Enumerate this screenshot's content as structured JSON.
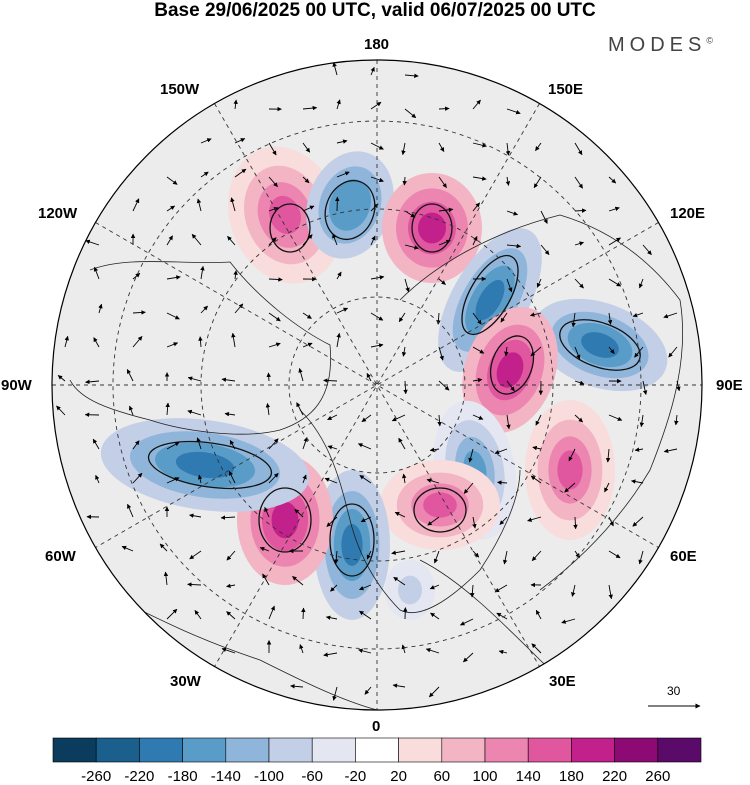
{
  "title": "Base 29/06/2025 00 UTC, valid 06/07/2025 00 UTC",
  "brand": "MODES",
  "brand_mark": "©",
  "longitude_labels": {
    "l180": "180",
    "l150e": "150E",
    "l120e": "120E",
    "l90e": "90E",
    "l60e": "60E",
    "l30e": "30E",
    "l0": "0",
    "l30w": "30W",
    "l60w": "60W",
    "l90w": "90W",
    "l120w": "120W",
    "l150w": "150W"
  },
  "vector_scale": "30",
  "colorbar": {
    "ticks": [
      "-260",
      "-220",
      "-180",
      "-140",
      "-100",
      "-60",
      "-20",
      "20",
      "60",
      "100",
      "140",
      "180",
      "220",
      "260"
    ],
    "colors": [
      "#0b3c5d",
      "#1b5f8c",
      "#2f7ab0",
      "#5a9cc8",
      "#8fb6da",
      "#c2cfe6",
      "#e4e6f2",
      "#ffffff",
      "#f9dcdc",
      "#f3b4c4",
      "#ec86b0",
      "#e0569f",
      "#c2208a",
      "#8d0a75",
      "#5a0a68"
    ]
  },
  "anomalies": [
    {
      "name": "anomaly-pos-150w",
      "value": 160
    },
    {
      "name": "anomaly-neg-170e",
      "value": -180
    },
    {
      "name": "anomaly-pos-150e",
      "value": 180
    },
    {
      "name": "anomaly-neg-120e",
      "value": -200
    },
    {
      "name": "anomaly-neg-100e",
      "value": -200
    },
    {
      "name": "anomaly-pos-90e",
      "value": 180
    },
    {
      "name": "anomaly-neg-60e",
      "value": -150
    },
    {
      "name": "anomaly-pos-50e",
      "value": 140
    },
    {
      "name": "anomaly-pos-40e",
      "value": 170
    },
    {
      "name": "anomaly-neg-10w",
      "value": -200
    },
    {
      "name": "anomaly-pos-45w",
      "value": 200
    },
    {
      "name": "anomaly-neg-70w",
      "value": -220
    },
    {
      "name": "anomaly-neg-30e",
      "value": -100
    }
  ]
}
